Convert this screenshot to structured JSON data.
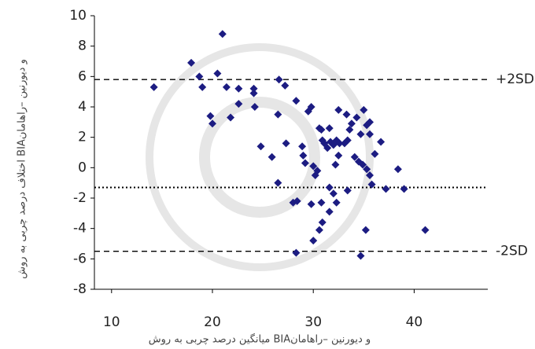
{
  "chart_data": {
    "type": "scatter",
    "x_label": "میانگین درصد چربی به روش  BIAو دیورنین –راهامان",
    "y_label": "اختلاف درصد چربی به روش BIAو دیورنین –راهامان",
    "xlim": [
      8.3,
      47.3
    ],
    "xticks": [
      10,
      20,
      30,
      40
    ],
    "ylim": [
      -8,
      10
    ],
    "yticks": [
      -8,
      -6,
      -4,
      -2,
      0,
      2,
      4,
      6,
      8,
      10
    ],
    "color": "#1c1c82",
    "x": [
      14.2,
      17.9,
      18.7,
      19.0,
      20.5,
      21.4,
      19.8,
      20.0,
      21.8,
      22.6,
      22.6,
      24.1,
      24.1,
      24.2,
      21.0,
      26.6,
      27.2,
      26.5,
      28.3,
      29.5,
      29.8,
      24.8,
      25.9,
      27.3,
      26.5,
      28.4,
      28.0,
      28.3,
      29.8,
      30.0,
      30.6,
      30.8,
      28.9,
      29.0,
      29.2,
      30.0,
      30.2,
      30.4,
      30.6,
      30.8,
      30.9,
      31.1,
      31.4,
      31.7,
      32.0,
      32.3,
      32.6,
      33.1,
      33.6,
      31.6,
      32.5,
      33.3,
      33.8,
      34.3,
      35.0,
      35.3,
      35.6,
      34.7,
      35.6,
      36.7,
      36.1,
      34.1,
      34.5,
      34.9,
      35.3,
      35.6,
      35.8,
      37.2,
      38.4,
      39.0,
      32.5,
      31.6,
      32.0,
      32.3,
      33.4,
      31.6,
      33.4,
      35.2,
      34.7,
      41.1,
      32.2,
      30.9
    ],
    "values": [
      5.3,
      6.9,
      6.0,
      5.3,
      6.2,
      5.3,
      3.4,
      2.9,
      3.3,
      4.2,
      5.2,
      5.2,
      4.9,
      4.0,
      8.8,
      5.8,
      5.4,
      3.5,
      4.4,
      3.7,
      4.0,
      1.4,
      0.7,
      1.6,
      -1.0,
      -2.2,
      -2.3,
      -5.6,
      -2.4,
      -4.8,
      -4.1,
      -2.3,
      1.4,
      0.8,
      0.3,
      0.1,
      -0.5,
      -0.2,
      2.6,
      2.5,
      1.8,
      1.6,
      1.3,
      1.7,
      1.5,
      1.8,
      1.6,
      1.6,
      2.5,
      2.6,
      3.8,
      3.5,
      2.9,
      3.3,
      3.8,
      2.8,
      2.2,
      2.2,
      3.0,
      1.7,
      0.9,
      0.7,
      0.4,
      0.2,
      -0.1,
      -0.5,
      -1.1,
      -1.4,
      -0.1,
      -1.4,
      0.8,
      -1.3,
      -1.7,
      -2.3,
      -1.5,
      -2.9,
      1.8,
      -4.1,
      -5.8,
      -4.1,
      0.2,
      -3.6
    ],
    "reference_lines": [
      {
        "label": "+2SD",
        "value": 5.8,
        "dash": "dashed"
      },
      {
        "value": -1.3,
        "dash": "dotted"
      },
      {
        "label": "-2SD",
        "value": -5.5,
        "dash": "dashed"
      }
    ]
  }
}
